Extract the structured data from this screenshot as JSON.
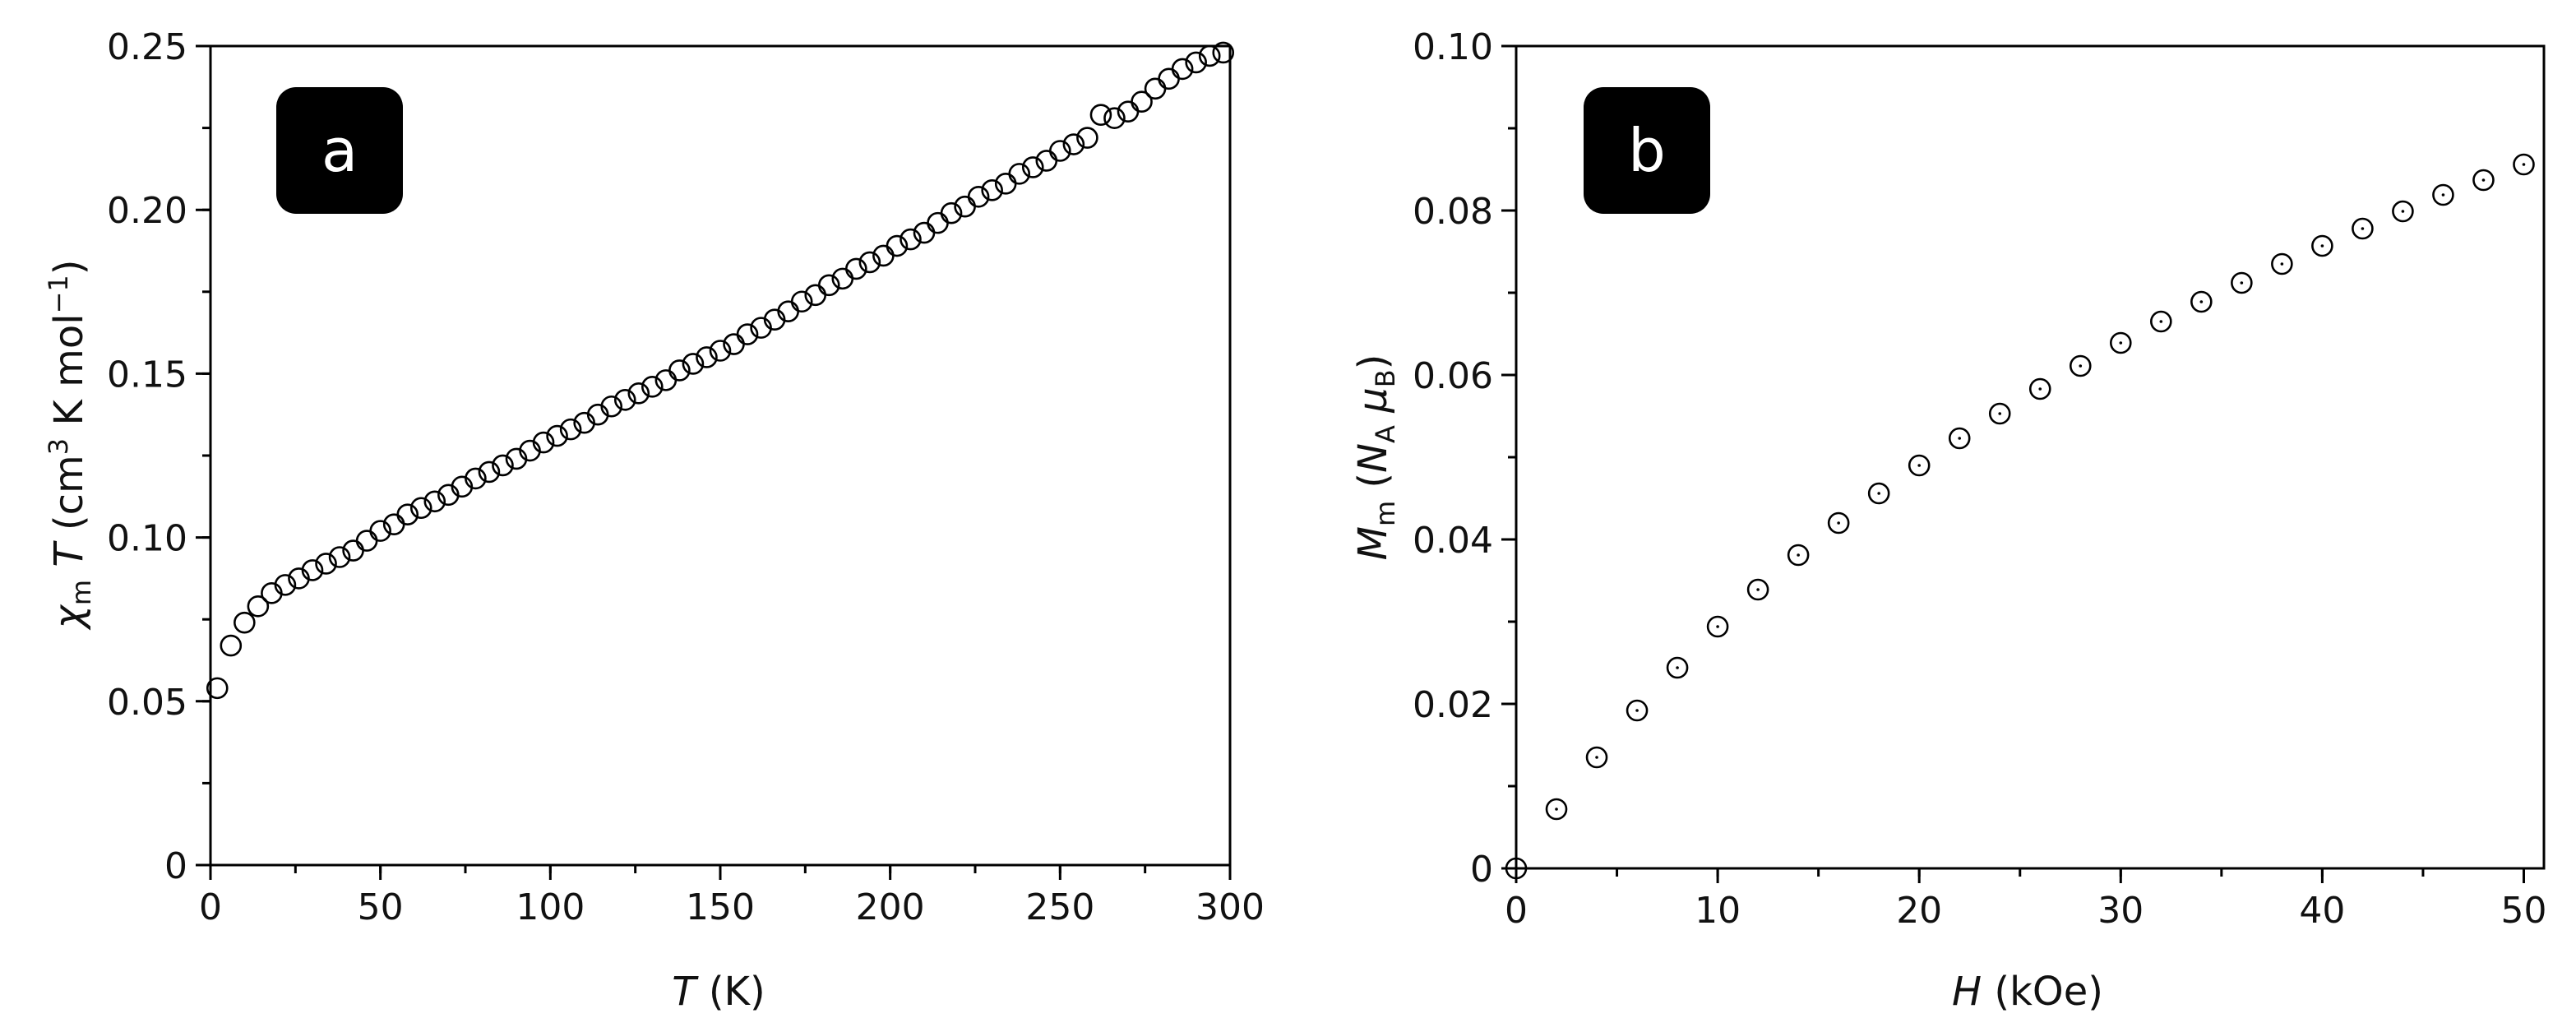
{
  "chart_data": [
    {
      "type": "scatter",
      "panel_label": "a",
      "xlabel": {
        "main": "T",
        "unit": " (K)"
      },
      "ylabel": {
        "symbol": "χ",
        "sub": "m",
        "var": " T",
        "pre": " (cm",
        "sup": "3",
        "mid": " K mol",
        "sup2": "−1",
        "post": ")"
      },
      "xlim": [
        0,
        300
      ],
      "ylim": [
        0,
        0.25
      ],
      "xticks": [
        0,
        50,
        100,
        150,
        200,
        250,
        300
      ],
      "xtick_labels": [
        "0",
        "50",
        "100",
        "150",
        "200",
        "250",
        "300"
      ],
      "xminor_step": 25,
      "yticks": [
        0,
        0.05,
        0.1,
        0.15,
        0.2,
        0.25
      ],
      "ytick_labels": [
        "0",
        "0.05",
        "0.10",
        "0.15",
        "0.20",
        "0.25"
      ],
      "yminor_step": 0.025,
      "marker": "open-circle",
      "color": "#000000",
      "x": [
        2,
        6,
        10,
        14,
        18,
        22,
        26,
        30,
        34,
        38,
        42,
        46,
        50,
        54,
        58,
        62,
        66,
        70,
        74,
        78,
        82,
        86,
        90,
        94,
        98,
        102,
        106,
        110,
        114,
        118,
        122,
        126,
        130,
        134,
        138,
        142,
        146,
        150,
        154,
        158,
        162,
        166,
        170,
        174,
        178,
        182,
        186,
        190,
        194,
        198,
        202,
        206,
        210,
        214,
        218,
        222,
        226,
        230,
        234,
        238,
        242,
        246,
        250,
        254,
        258,
        262,
        266,
        270,
        274,
        278,
        282,
        286,
        290,
        294,
        298
      ],
      "y": [
        0.054,
        0.067,
        0.074,
        0.079,
        0.083,
        0.0855,
        0.0875,
        0.09,
        0.092,
        0.094,
        0.096,
        0.099,
        0.102,
        0.104,
        0.107,
        0.109,
        0.111,
        0.113,
        0.1155,
        0.118,
        0.12,
        0.122,
        0.124,
        0.1265,
        0.129,
        0.131,
        0.133,
        0.135,
        0.1375,
        0.14,
        0.142,
        0.144,
        0.146,
        0.148,
        0.151,
        0.153,
        0.155,
        0.157,
        0.159,
        0.162,
        0.164,
        0.1665,
        0.169,
        0.172,
        0.174,
        0.177,
        0.179,
        0.182,
        0.184,
        0.186,
        0.189,
        0.191,
        0.193,
        0.196,
        0.199,
        0.201,
        0.204,
        0.206,
        0.208,
        0.211,
        0.213,
        0.215,
        0.218,
        0.22,
        0.222,
        0.229,
        0.228,
        0.23,
        0.233,
        0.237,
        0.24,
        0.243,
        0.245,
        0.247,
        0.248
      ]
    },
    {
      "type": "scatter",
      "panel_label": "b",
      "xlabel": {
        "main": "H",
        "unit": " (kOe)"
      },
      "ylabel": {
        "symbol": "M",
        "sub": "m",
        "pre": " (",
        "n": "N",
        "nsub": "A",
        "mu": " μ",
        "musub": "B",
        "post": ")"
      },
      "xlim": [
        0,
        51
      ],
      "ylim": [
        0,
        0.1
      ],
      "xticks": [
        0,
        10,
        20,
        30,
        40,
        50
      ],
      "xtick_labels": [
        "0",
        "10",
        "20",
        "30",
        "40",
        "50"
      ],
      "xminor_step": 5,
      "yticks": [
        0,
        0.02,
        0.04,
        0.06,
        0.08,
        0.1
      ],
      "ytick_labels": [
        "0",
        "0.02",
        "0.04",
        "0.06",
        "0.08",
        "0.10"
      ],
      "yminor_step": 0.01,
      "marker": "dotted-circle",
      "color": "#000000",
      "x": [
        0,
        2,
        4,
        6,
        8,
        10,
        12,
        14,
        16,
        18,
        20,
        22,
        24,
        26,
        28,
        30,
        32,
        34,
        36,
        38,
        40,
        42,
        44,
        46,
        48,
        50
      ],
      "y": [
        0,
        0.0072,
        0.0135,
        0.0192,
        0.0244,
        0.0294,
        0.0339,
        0.0381,
        0.042,
        0.0456,
        0.049,
        0.0523,
        0.0553,
        0.0583,
        0.0611,
        0.0639,
        0.0665,
        0.0689,
        0.0712,
        0.0735,
        0.0757,
        0.0778,
        0.0799,
        0.0819,
        0.0837,
        0.0856
      ]
    }
  ]
}
